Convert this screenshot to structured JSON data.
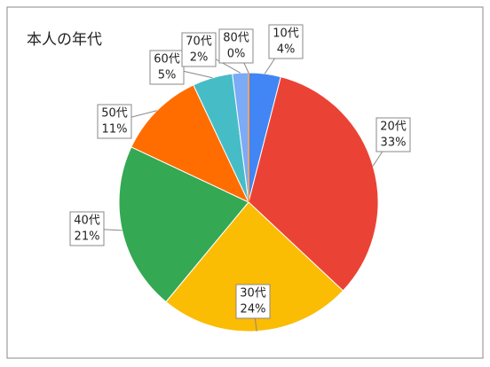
{
  "chart_data": {
    "type": "pie",
    "title": "本人の年代",
    "categories": [
      "10代",
      "20代",
      "30代",
      "40代",
      "50代",
      "60代",
      "70代",
      "80代"
    ],
    "values": [
      4,
      33,
      24,
      21,
      11,
      5,
      2,
      0
    ],
    "value_labels": [
      "4%",
      "33%",
      "24%",
      "21%",
      "11%",
      "5%",
      "2%",
      "0%"
    ],
    "colors": [
      "#4285f4",
      "#ea4335",
      "#fbbc04",
      "#34a853",
      "#ff6d01",
      "#46bdc6",
      "#7baaf7",
      "#f4a261"
    ]
  }
}
